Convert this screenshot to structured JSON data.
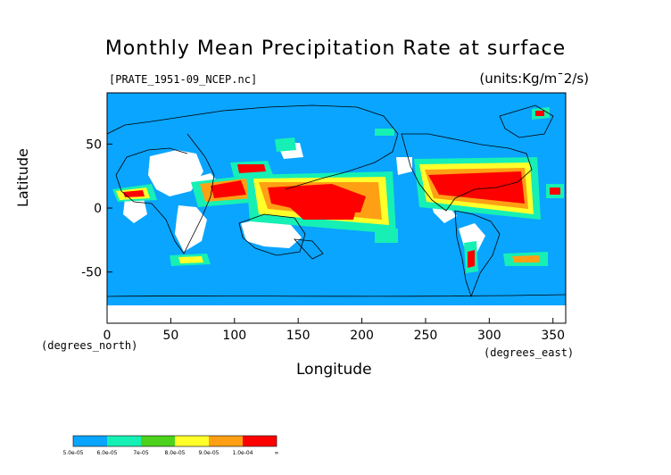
{
  "chart_data": {
    "type": "heatmap",
    "title": "Monthly Mean Precipitation Rate at surface",
    "source_label": "[PRATE_1951-09_NCEP.nc]",
    "units_label": "(units:Kg/m¯2/s)",
    "xlabel": "Longitude",
    "ylabel": "Latitude",
    "x_unit_label": "(degrees_east)",
    "y_unit_label": "(degrees_north)",
    "xlim": [
      0,
      360
    ],
    "ylim": [
      -90,
      90
    ],
    "x_ticks": [
      "0",
      "50",
      "100",
      "150",
      "200",
      "250",
      "300",
      "350"
    ],
    "y_ticks": [
      "50",
      "0",
      "-50"
    ],
    "colorbar": {
      "labels": [
        "5.0e-05",
        "6.0e-05",
        "7e-05",
        "8.0e-05",
        "9.0e-05",
        "1.0e-04",
        "∞"
      ],
      "colors": [
        "#0aa5ff",
        "#16f0b4",
        "#4cd21c",
        "#ffff2a",
        "#ffa014",
        "#ff0000"
      ]
    },
    "colors": {
      "ocean": "#0aa5ff",
      "land_missing": "#ffffff",
      "coast": "#000000"
    }
  }
}
